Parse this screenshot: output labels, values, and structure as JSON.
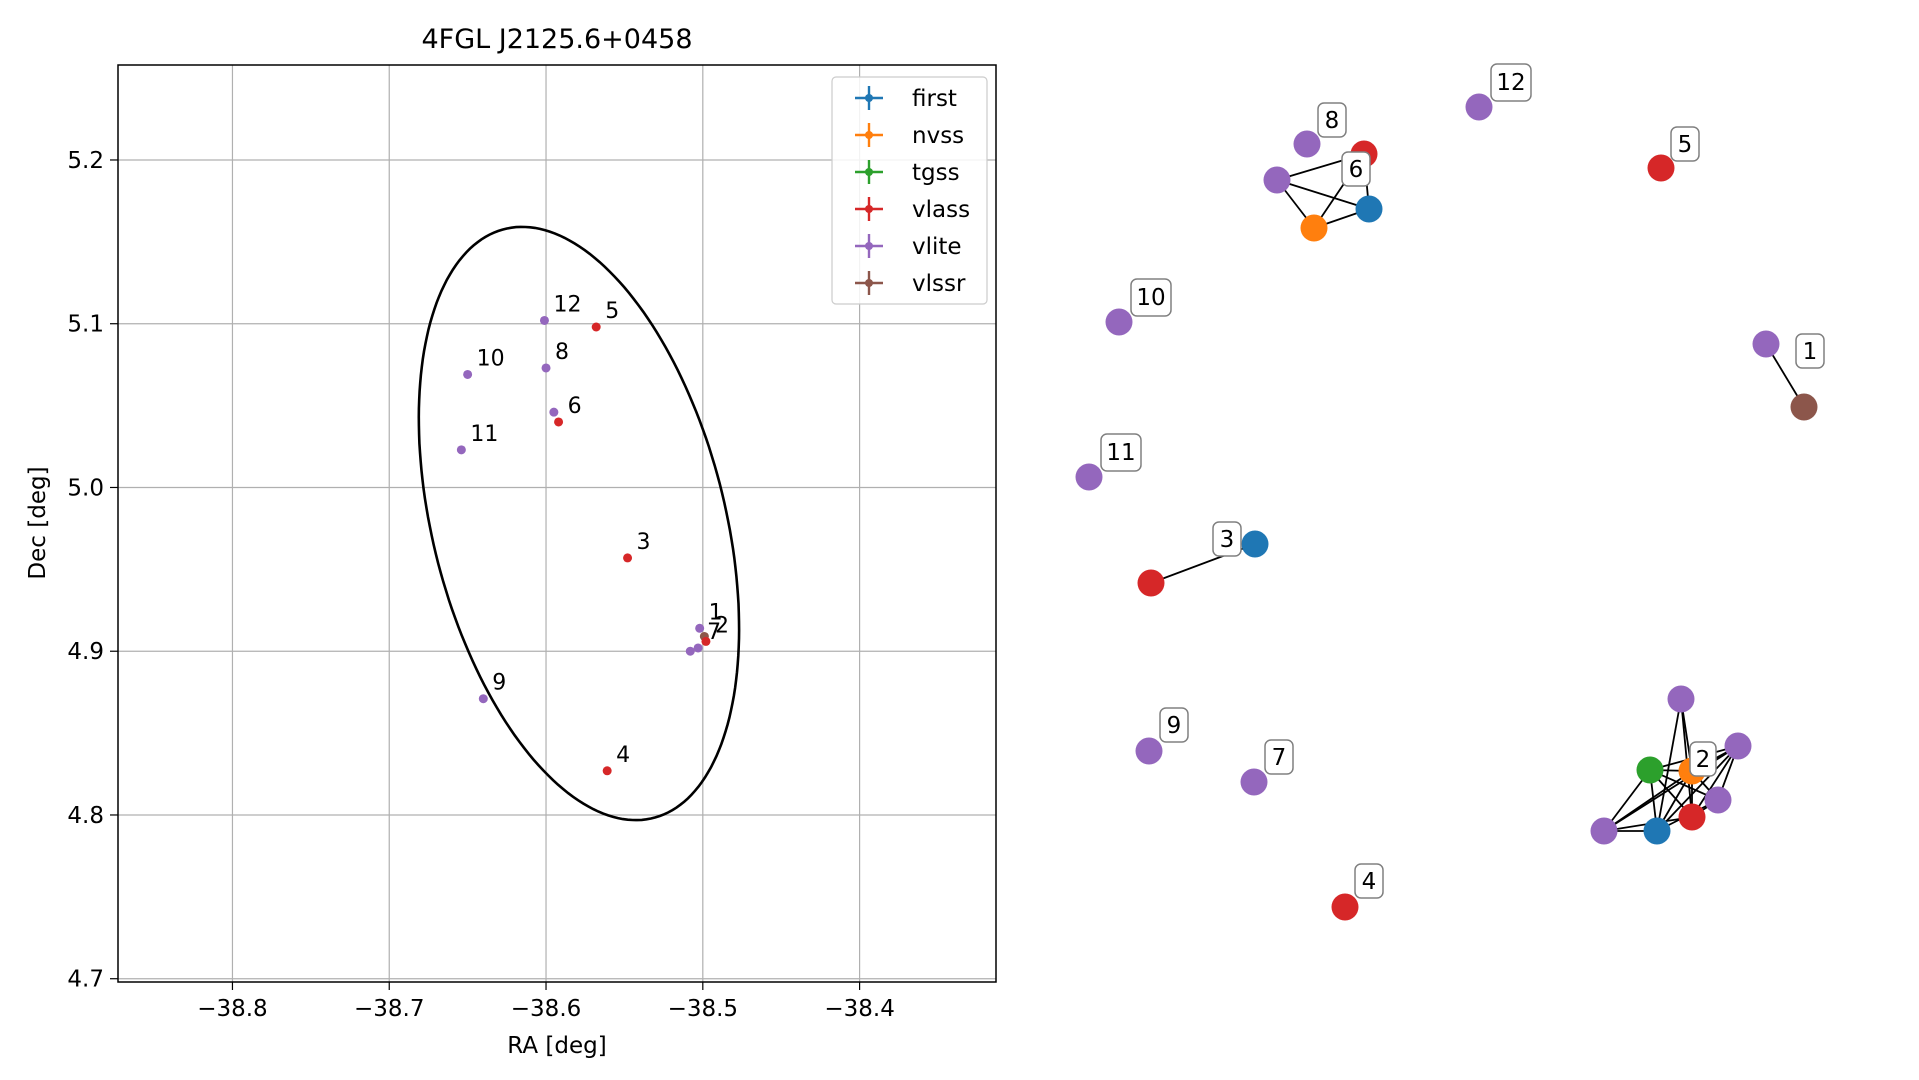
{
  "colors": {
    "first": "#1f77b4",
    "nvss": "#ff7f0e",
    "tgss": "#2ca02c",
    "vlass": "#d62728",
    "vlite": "#9467bd",
    "vlssr": "#8c564b"
  },
  "chart_data": [
    {
      "type": "scatter",
      "title": "4FGL J2125.6+0458",
      "xlabel": "RA [deg]",
      "ylabel": "Dec [deg]",
      "xlim": [
        -38.873,
        -38.313
      ],
      "ylim": [
        4.698,
        5.258
      ],
      "xticks": [
        -38.8,
        -38.7,
        -38.6,
        -38.5,
        -38.4
      ],
      "xtick_labels": [
        "−38.8",
        "−38.7",
        "−38.6",
        "−38.5",
        "−38.4"
      ],
      "yticks": [
        4.7,
        4.8,
        4.9,
        5.0,
        5.1,
        5.2
      ],
      "ytick_labels": [
        "4.7",
        "4.8",
        "4.9",
        "5.0",
        "5.1",
        "5.2"
      ],
      "grid": true,
      "legend_position": "top-right",
      "legend": [
        "first",
        "nvss",
        "tgss",
        "vlass",
        "vlite",
        "vlssr"
      ],
      "ellipse": {
        "center": [
          -38.579,
          4.978
        ],
        "semi_major": 0.186,
        "semi_minor": 0.093,
        "angle_deg": 105.2
      },
      "points": [
        {
          "survey": "vlite",
          "ra": -38.601,
          "dec": 5.102,
          "label": "12"
        },
        {
          "survey": "vlass",
          "ra": -38.568,
          "dec": 5.098,
          "label": "5"
        },
        {
          "survey": "vlite",
          "ra": -38.65,
          "dec": 5.069,
          "label": "10"
        },
        {
          "survey": "vlite",
          "ra": -38.6,
          "dec": 5.073,
          "label": "8"
        },
        {
          "survey": "vlite",
          "ra": -38.595,
          "dec": 5.046,
          "label": ""
        },
        {
          "survey": "vlass",
          "ra": -38.592,
          "dec": 5.04,
          "label": "6"
        },
        {
          "survey": "vlite",
          "ra": -38.654,
          "dec": 5.023,
          "label": "11"
        },
        {
          "survey": "vlass",
          "ra": -38.548,
          "dec": 4.957,
          "label": "3"
        },
        {
          "survey": "vlite",
          "ra": -38.502,
          "dec": 4.914,
          "label": "1"
        },
        {
          "survey": "vlssr",
          "ra": -38.499,
          "dec": 4.909,
          "label": ""
        },
        {
          "survey": "vlite",
          "ra": -38.508,
          "dec": 4.9,
          "label": ""
        },
        {
          "survey": "vlite",
          "ra": -38.503,
          "dec": 4.902,
          "label": "7"
        },
        {
          "survey": "vlass",
          "ra": -38.498,
          "dec": 4.906,
          "label": "2"
        },
        {
          "survey": "vlite",
          "ra": -38.64,
          "dec": 4.871,
          "label": "9"
        },
        {
          "survey": "vlass",
          "ra": -38.561,
          "dec": 4.827,
          "label": "4"
        }
      ]
    },
    {
      "type": "network",
      "labels": [
        {
          "text": "12"
        },
        {
          "text": "8"
        },
        {
          "text": "6"
        },
        {
          "text": "5"
        },
        {
          "text": "10"
        },
        {
          "text": "1"
        },
        {
          "text": "11"
        },
        {
          "text": "3"
        },
        {
          "text": "9"
        },
        {
          "text": "7"
        },
        {
          "text": "2"
        },
        {
          "text": "4"
        }
      ]
    }
  ]
}
